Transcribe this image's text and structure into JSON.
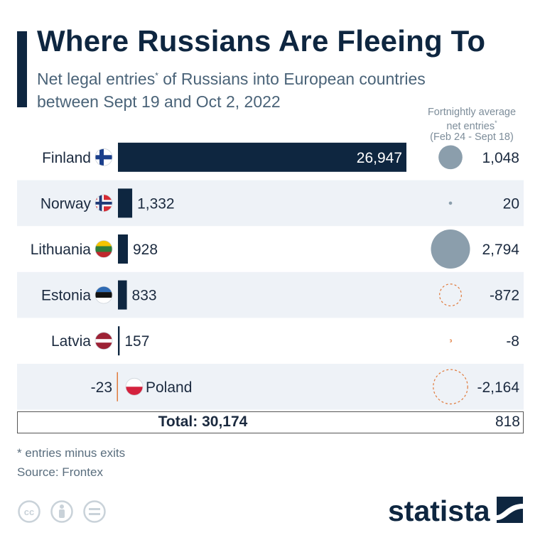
{
  "title": "Where Russians Are Fleeing To",
  "subtitle_line1_pre": "Net legal entries",
  "subtitle_line1_post": " of Russians into European countries",
  "subtitle_line2": "between Sept 19 and Oct 2, 2022",
  "asterisk": "*",
  "bubble_header_line1": "Fortnightly average",
  "bubble_header_line2": "net entries",
  "bubble_header_line3": "(Feb 24 - Sept 18)",
  "total_label": "Total: 30,174",
  "total_avg": "818",
  "footnote": "* entries minus exits",
  "source": "Source: Frontex",
  "brand": "statista",
  "colors": {
    "bar": "#0e2640",
    "bubble_positive": "#8b9eac",
    "bubble_negative": "#e07a3c",
    "row_shade": "#eef2f7"
  },
  "chart_data": {
    "type": "bar",
    "title": "Where Russians Are Fleeing To",
    "categories": [
      "Finland",
      "Norway",
      "Lithuania",
      "Estonia",
      "Latvia",
      "Poland"
    ],
    "series": [
      {
        "name": "Net legal entries",
        "values": [
          26947,
          1332,
          928,
          833,
          157,
          -23
        ],
        "labels": [
          "26,947",
          "1,332",
          "928",
          "833",
          "157",
          "-23"
        ]
      },
      {
        "name": "Fortnightly average net entries",
        "values": [
          1048,
          20,
          2794,
          -872,
          -8,
          -2164
        ],
        "labels": [
          "1,048",
          "20",
          "2,794",
          "-872",
          "-8",
          "-2,164"
        ]
      }
    ],
    "flags": [
      "finland-flag-icon",
      "norway-flag-icon",
      "lithuania-flag-icon",
      "estonia-flag-icon",
      "latvia-flag-icon",
      "poland-flag-icon"
    ]
  }
}
